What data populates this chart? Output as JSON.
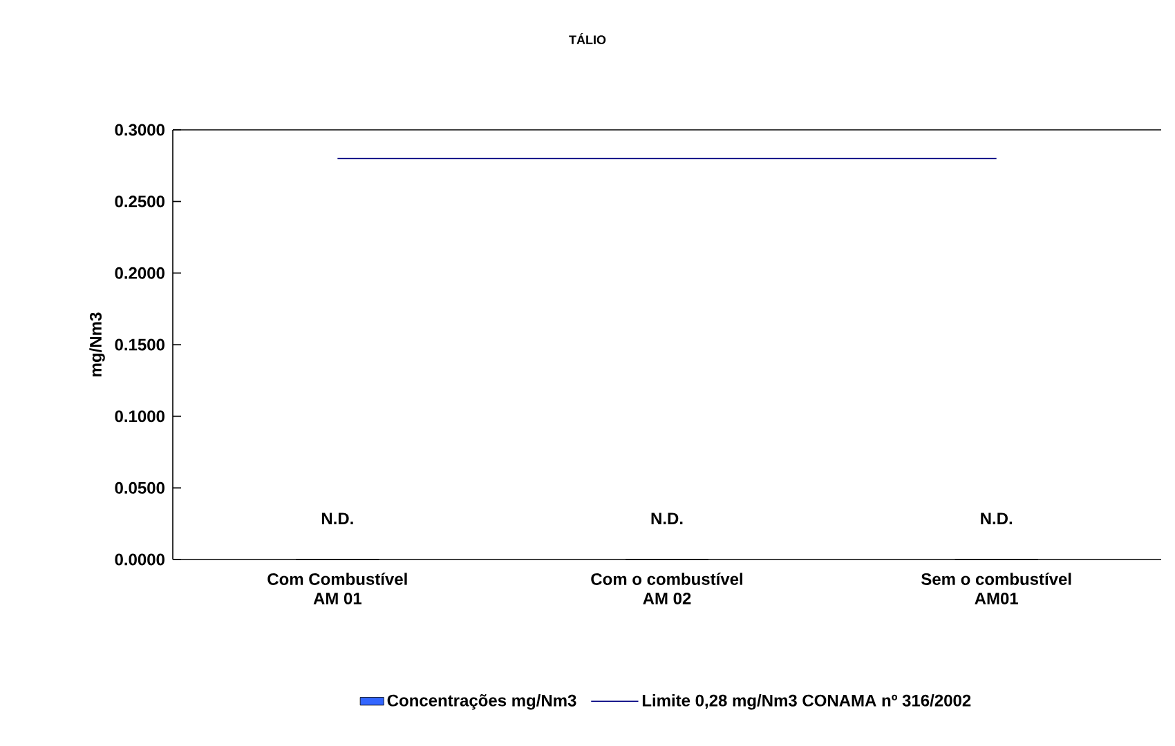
{
  "chart_data": {
    "type": "bar",
    "title": "TÁLIO",
    "ylabel": "mg/Nm3",
    "categories": [
      "Com Combustível\nAM 01",
      "Com o combustível\nAM 02",
      "Sem o combustível\nAM01"
    ],
    "series": [
      {
        "name": "Concentrações mg/Nm3",
        "color": "#3366ff",
        "values": [
          0,
          0,
          0
        ],
        "value_labels": [
          "N.D.",
          "N.D.",
          "N.D."
        ]
      },
      {
        "name": "Limite 0,28 mg/Nm3 CONAMA nº 316/2002",
        "type": "line",
        "color": "#000080",
        "values": [
          0.28,
          0.28,
          0.28
        ]
      }
    ],
    "ylim": [
      0,
      0.3
    ],
    "yticks": [
      {
        "value": 0,
        "label": "0.0000"
      },
      {
        "value": 0.05,
        "label": "0.0500"
      },
      {
        "value": 0.1,
        "label": "0.1000"
      },
      {
        "value": 0.15,
        "label": "0.1500"
      },
      {
        "value": 0.2,
        "label": "0.2000"
      },
      {
        "value": 0.25,
        "label": "0.2500"
      },
      {
        "value": 0.3,
        "label": "0.3000"
      }
    ],
    "legend": "bottom",
    "grid": false,
    "marker": "none"
  }
}
